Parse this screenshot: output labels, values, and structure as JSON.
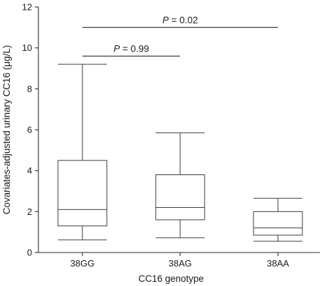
{
  "chart_data": {
    "type": "box",
    "xlabel": "CC16 genotype",
    "ylabel": "Covariates-adjusted urinary CC16 (μg/L)",
    "ylim": [
      0,
      12
    ],
    "yticks": [
      0,
      2,
      4,
      6,
      8,
      10,
      12
    ],
    "ytick_labels": [
      "0",
      "2",
      "4",
      "6",
      "8",
      "10",
      "12"
    ],
    "categories": [
      "38GG",
      "38AG",
      "38AA"
    ],
    "boxes": [
      {
        "category": "38GG",
        "min": 0.62,
        "q1": 1.3,
        "median": 2.1,
        "q3": 4.5,
        "max": 9.2
      },
      {
        "category": "38AG",
        "min": 0.72,
        "q1": 1.6,
        "median": 2.2,
        "q3": 3.8,
        "max": 5.85
      },
      {
        "category": "38AA",
        "min": 0.55,
        "q1": 0.85,
        "median": 1.2,
        "q3": 2.0,
        "max": 2.65
      }
    ],
    "annotations": [
      {
        "from": "38GG",
        "to": "38AG",
        "y": 9.6,
        "p_label": "P",
        "p_value": " = 0.99"
      },
      {
        "from": "38GG",
        "to": "38AA",
        "y": 11.0,
        "p_label": "P",
        "p_value": " = 0.02"
      }
    ],
    "grid": false,
    "legend": "none"
  }
}
